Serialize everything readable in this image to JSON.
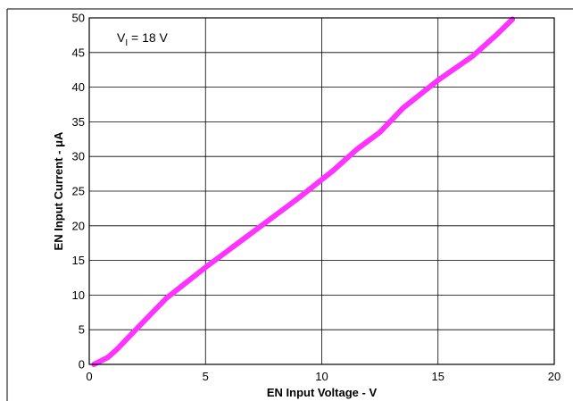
{
  "chart_data": {
    "type": "line",
    "title": "",
    "xlabel": "EN Input Voltage - V",
    "ylabel": "EN Input Current - μA",
    "xlim": [
      0,
      20
    ],
    "ylim": [
      0,
      50
    ],
    "xticks": [
      "0",
      "5",
      "10",
      "15",
      "20"
    ],
    "yticks": [
      "0",
      "5",
      "10",
      "15",
      "20",
      "25",
      "30",
      "35",
      "40",
      "45",
      "50"
    ],
    "grid": true,
    "legend": "none",
    "annotation": {
      "prefix": "V",
      "subscript": "I",
      "suffix": " = 18 V"
    },
    "series": [
      {
        "color": "#ff33ff",
        "x": [
          0.2,
          0.8,
          1.2,
          2.0,
          3.3,
          5.0,
          7.0,
          9.0,
          10.5,
          11.5,
          12.5,
          13.5,
          15.0,
          16.5,
          17.5,
          18.2
        ],
        "y": [
          0.0,
          1.0,
          2.2,
          5.0,
          9.5,
          14.0,
          19.0,
          24.0,
          28.0,
          31.0,
          33.5,
          37.0,
          41.0,
          44.5,
          47.5,
          49.8
        ]
      }
    ]
  }
}
